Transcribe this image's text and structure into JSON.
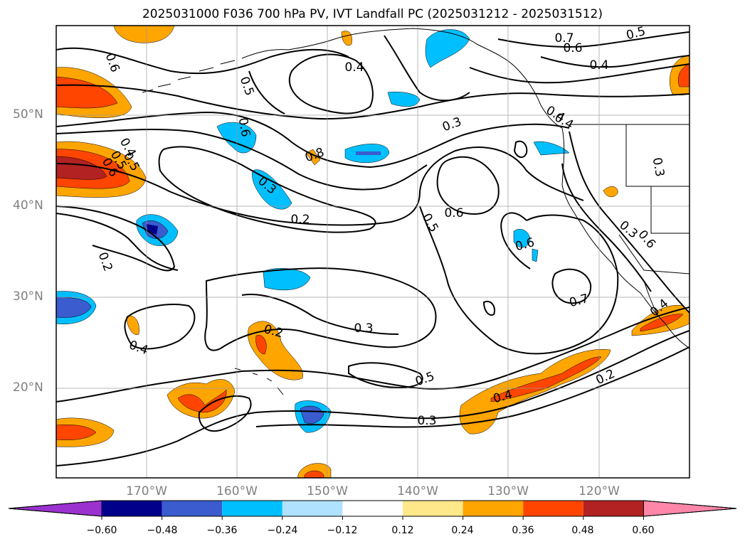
{
  "title": "2025031000 F036 700 hPa PV, IVT Landfall PC (2025031212 - 2025031512)",
  "lat_labels": [
    "50°N",
    "40°N",
    "30°N",
    "20°N"
  ],
  "lon_labels": [
    "170°W",
    "160°W",
    "150°W",
    "140°W",
    "130°W",
    "120°W"
  ],
  "colorbar": {
    "ticks": [
      "−0.60",
      "−0.48",
      "−0.36",
      "−0.24",
      "−0.12",
      "0.12",
      "0.24",
      "0.36",
      "0.48",
      "0.60"
    ],
    "colors": [
      "#9b32cf",
      "#00008b",
      "#3a5ccf",
      "#00bfff",
      "#aee2ff",
      "#ffffff",
      "#ffe88a",
      "#ffa500",
      "#ff4500",
      "#b22222",
      "#ff87aa"
    ]
  },
  "contour_labels": [
    "0.6",
    "0.5",
    "0.4",
    "0.7",
    "0.6",
    "0.5",
    "0.4",
    "0.3",
    "0.4",
    "0.6",
    "0.4",
    "0.5",
    "0.6",
    "0.3",
    "0.2",
    "0.2",
    "0.5",
    "0.6",
    "0.6",
    "0.3",
    "0.3",
    "0.6",
    "0.7",
    "0.4",
    "0.2",
    "0.4",
    "0.3",
    "0.5",
    "0.4",
    "0.3",
    "0.2",
    "0.5",
    "0.8",
    "0.4"
  ],
  "map": {
    "projection": "PlateCarree",
    "lon_range": [
      -180,
      -110
    ],
    "lat_range": [
      10,
      60
    ],
    "gridlines": true,
    "fill_variable": "IVT Landfall PC",
    "contour_variable": "700 hPa PV"
  }
}
